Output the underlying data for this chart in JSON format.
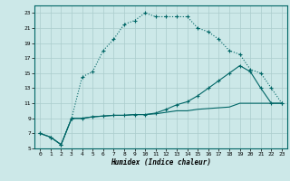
{
  "xlabel": "Humidex (Indice chaleur)",
  "background_color": "#cce8e8",
  "grid_color": "#aacccc",
  "line_color": "#006666",
  "xlim": [
    -0.5,
    23.5
  ],
  "ylim": [
    5,
    24
  ],
  "yticks": [
    5,
    7,
    9,
    11,
    13,
    15,
    17,
    19,
    21,
    23
  ],
  "xticks": [
    0,
    1,
    2,
    3,
    4,
    5,
    6,
    7,
    8,
    9,
    10,
    11,
    12,
    13,
    14,
    15,
    16,
    17,
    18,
    19,
    20,
    21,
    22,
    23
  ],
  "series1_x": [
    0,
    1,
    2,
    3,
    4,
    5,
    6,
    7,
    8,
    9,
    10,
    11,
    12,
    13,
    14,
    15,
    16,
    17,
    18,
    19,
    20,
    21,
    22,
    23
  ],
  "series1_y": [
    7,
    6.5,
    5.5,
    9.0,
    14.5,
    15.2,
    18.0,
    19.5,
    21.5,
    22.0,
    23.0,
    22.5,
    22.5,
    22.5,
    22.5,
    21.0,
    20.5,
    19.5,
    18.0,
    17.5,
    15.5,
    15.0,
    13.0,
    11.0
  ],
  "series2_x": [
    0,
    1,
    2,
    3,
    4,
    5,
    6,
    7,
    8,
    9,
    10,
    11,
    12,
    13,
    14,
    15,
    16,
    17,
    18,
    19,
    20,
    21,
    22,
    23
  ],
  "series2_y": [
    7.0,
    6.5,
    5.5,
    9.0,
    9.0,
    9.2,
    9.3,
    9.4,
    9.4,
    9.5,
    9.5,
    9.6,
    9.8,
    10.0,
    10.0,
    10.2,
    10.3,
    10.4,
    10.5,
    11.0,
    11.0,
    11.0,
    11.0,
    11.0
  ],
  "series3_x": [
    0,
    1,
    2,
    3,
    4,
    5,
    6,
    7,
    8,
    9,
    10,
    11,
    12,
    13,
    14,
    15,
    16,
    17,
    18,
    19,
    20,
    21,
    22,
    23
  ],
  "series3_y": [
    7.0,
    6.5,
    5.5,
    9.0,
    9.0,
    9.2,
    9.3,
    9.4,
    9.4,
    9.5,
    9.5,
    9.7,
    10.2,
    10.8,
    11.2,
    12.0,
    13.0,
    14.0,
    15.0,
    16.0,
    15.2,
    13.0,
    11.0,
    11.0
  ]
}
